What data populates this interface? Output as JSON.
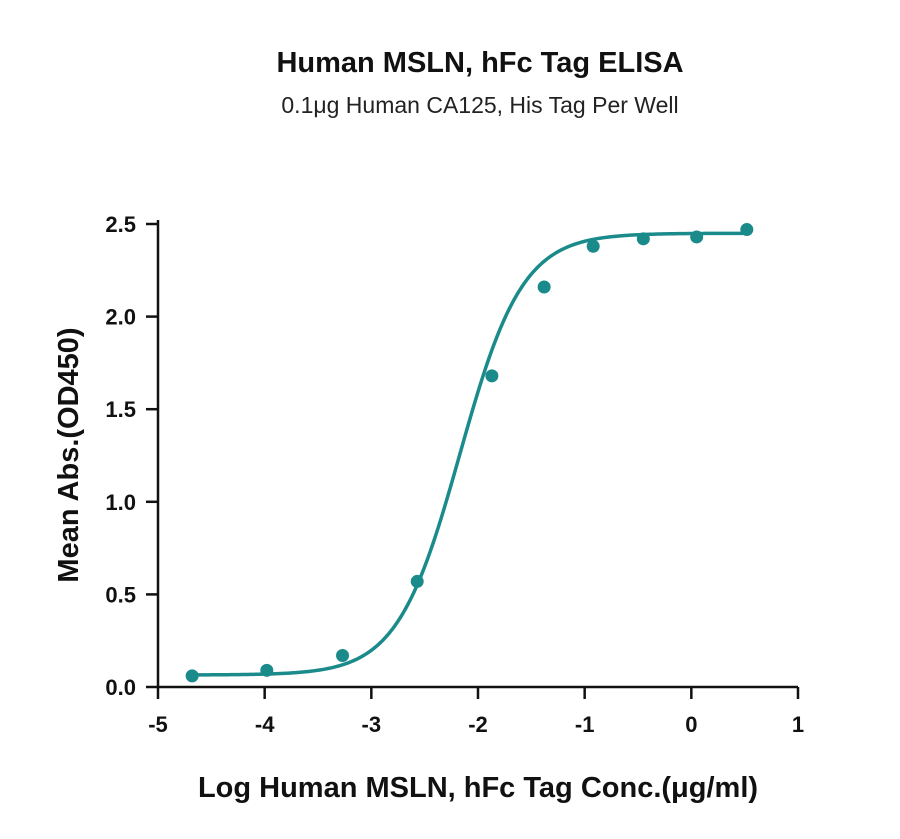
{
  "chart_data": {
    "type": "scatter",
    "title": "Human MSLN, hFc Tag ELISA",
    "subtitle": "0.1μg Human CA125, His Tag Per Well",
    "xlabel": "Log Human MSLN, hFc Tag Conc.(μg/ml)",
    "ylabel": "Mean Abs.(OD450)",
    "xlim": [
      -5,
      1
    ],
    "ylim": [
      0,
      2.5
    ],
    "x_ticks": [
      "-5",
      "-4",
      "-3",
      "-2",
      "-1",
      "0",
      "1"
    ],
    "y_ticks": [
      "0.0",
      "0.5",
      "1.0",
      "1.5",
      "2.0",
      "2.5"
    ],
    "grid": false,
    "color": "#1a8a8a",
    "series": [
      {
        "x": [
          -4.68,
          -3.98,
          -3.27,
          -2.57,
          -1.87,
          -1.38,
          -0.92,
          -0.45,
          0.05,
          0.52
        ],
        "y": [
          0.06,
          0.09,
          0.17,
          0.57,
          1.68,
          2.16,
          2.38,
          2.42,
          2.43,
          2.47
        ]
      }
    ],
    "fit": {
      "model": "4PL",
      "bottom": 0.065,
      "top": 2.45,
      "log_ec50": -2.17,
      "hill_slope": 1.48
    }
  }
}
